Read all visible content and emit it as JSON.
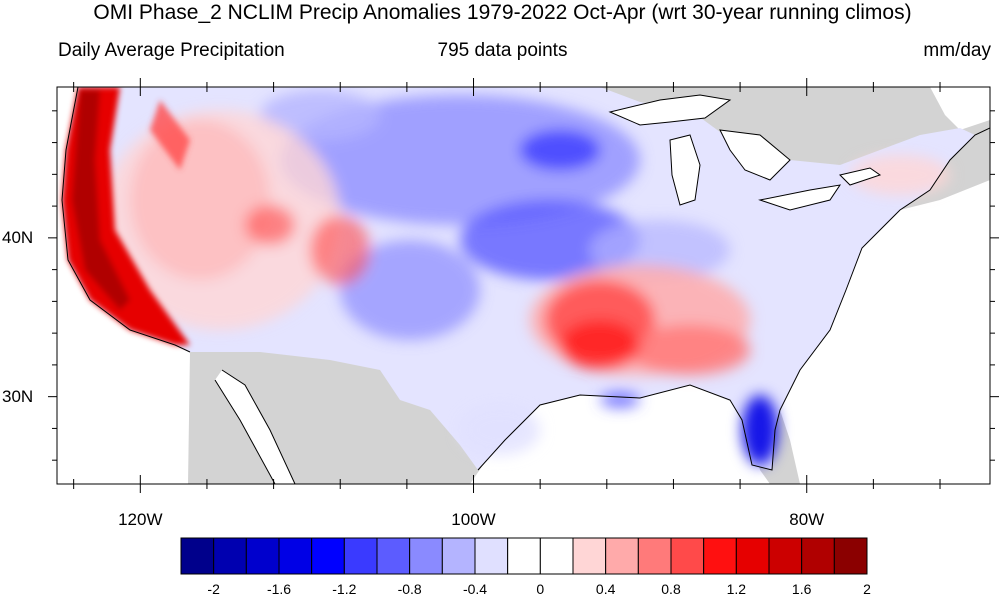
{
  "title": "OMI Phase_2 NCLIM Precip Anomalies 1979-2022 Oct-Apr (wrt 30-year running climos)",
  "subtitle_left": "Daily Average Precipitation",
  "subtitle_center": "795 data points",
  "subtitle_right": "mm/day",
  "map": {
    "lon_range": [
      -125,
      -69
    ],
    "lat_range": [
      24.5,
      49.5
    ],
    "lat_labels": [
      {
        "lat": 40,
        "label": "40N"
      },
      {
        "lat": 30,
        "label": "30N"
      }
    ],
    "lon_labels": [
      {
        "lon": -120,
        "label": "120W"
      },
      {
        "lon": -100,
        "label": "100W"
      },
      {
        "lon": -80,
        "label": "80W"
      }
    ],
    "land_outside_color": "#d3d3d3",
    "water_color": "#ffffff"
  },
  "colorbar": {
    "colors": [
      "#00008b",
      "#0000b0",
      "#0000cd",
      "#0000e6",
      "#0000ff",
      "#3a3aff",
      "#5c5cff",
      "#8a8aff",
      "#b4b4ff",
      "#e0e0ff",
      "#ffffff",
      "#ffffff",
      "#ffd6d6",
      "#ffaaaa",
      "#ff7a7a",
      "#ff4a4a",
      "#ff1010",
      "#e60000",
      "#cc0000",
      "#b00000",
      "#8b0000"
    ],
    "tick_labels": [
      "-2",
      "-1.6",
      "-1.2",
      "-0.8",
      "-0.4",
      "0",
      "0.4",
      "0.8",
      "1.2",
      "1.6",
      "2"
    ]
  }
}
